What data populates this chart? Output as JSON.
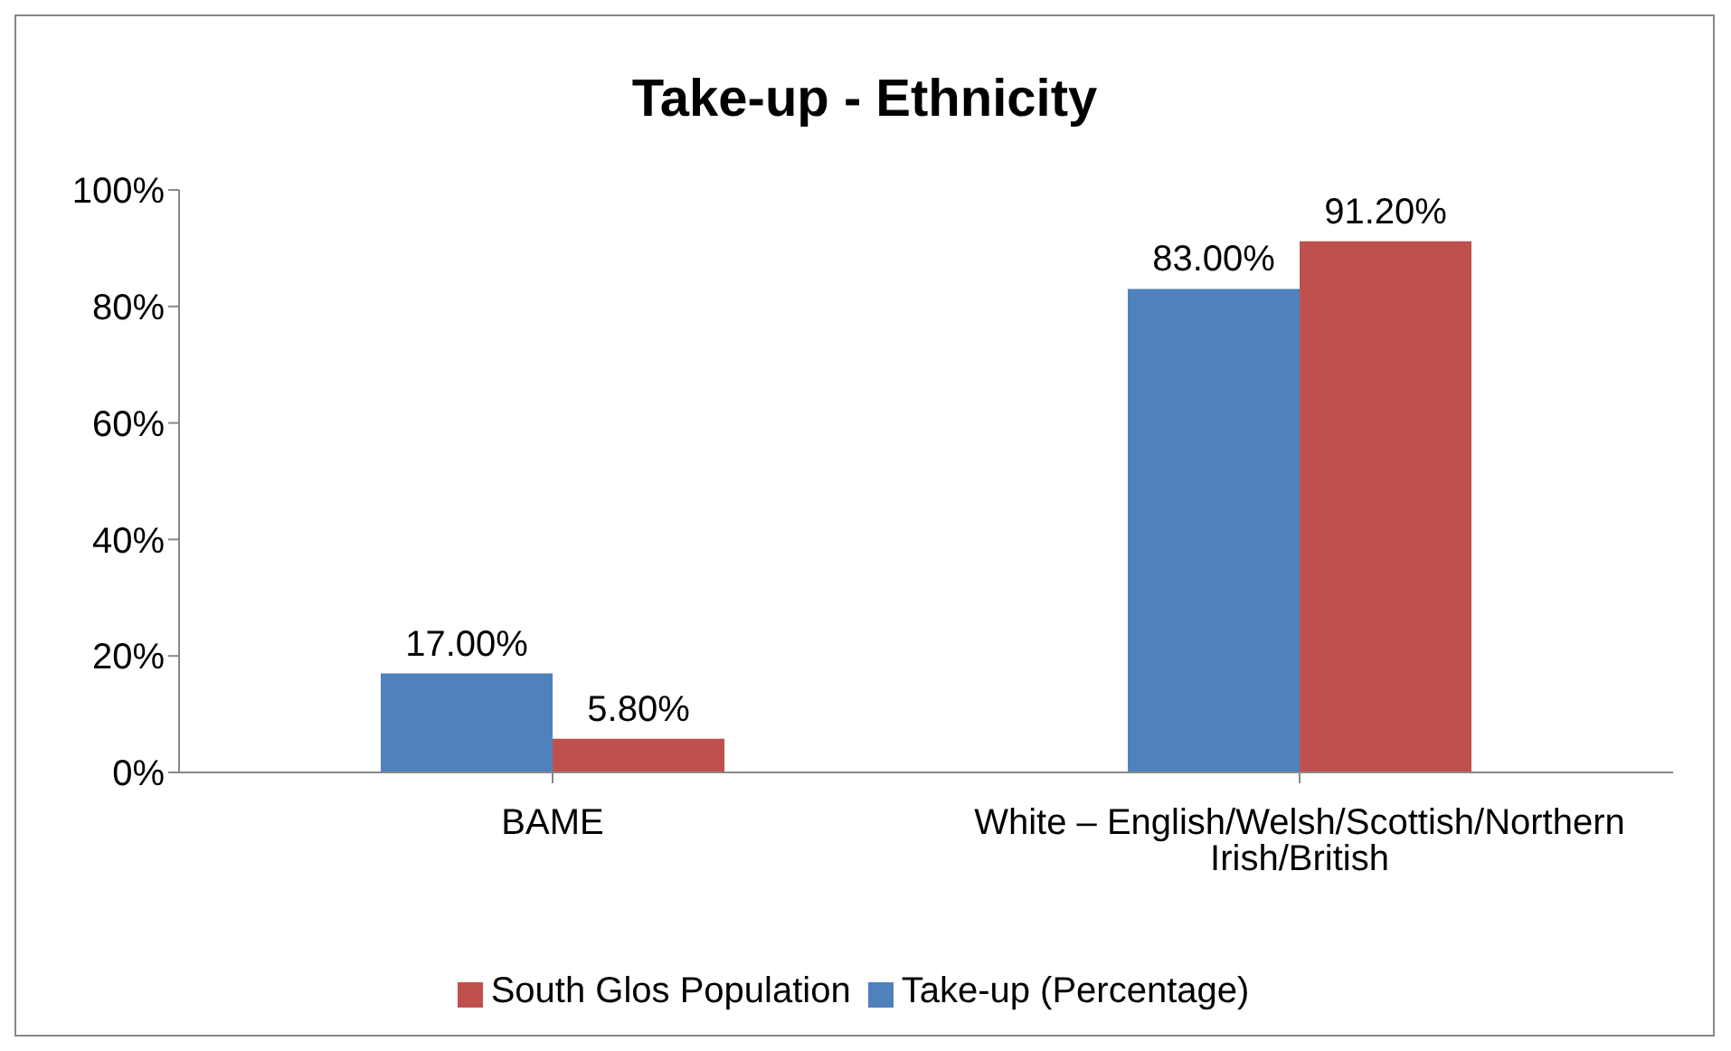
{
  "chart_data": {
    "type": "bar",
    "title": "Take-up - Ethnicity",
    "categories": [
      "BAME",
      "White – English/Welsh/Scottish/Northern Irish/British"
    ],
    "series": [
      {
        "name": "Take-up (Percentage)",
        "color": "#4f81bd",
        "values": [
          17.0,
          83.0
        ],
        "value_labels": [
          "17.00%",
          "83.00%"
        ]
      },
      {
        "name": "South Glos Population",
        "color": "#c0504d",
        "values": [
          5.8,
          91.2
        ],
        "value_labels": [
          "5.80%",
          "91.20%"
        ]
      }
    ],
    "ylim": [
      0,
      100
    ],
    "yticks": [
      {
        "value": 0,
        "label": "0%"
      },
      {
        "value": 20,
        "label": "20%"
      },
      {
        "value": 40,
        "label": "40%"
      },
      {
        "value": 60,
        "label": "60%"
      },
      {
        "value": 80,
        "label": "80%"
      },
      {
        "value": 100,
        "label": "100%"
      }
    ],
    "grid": false,
    "legend": "bottom"
  }
}
